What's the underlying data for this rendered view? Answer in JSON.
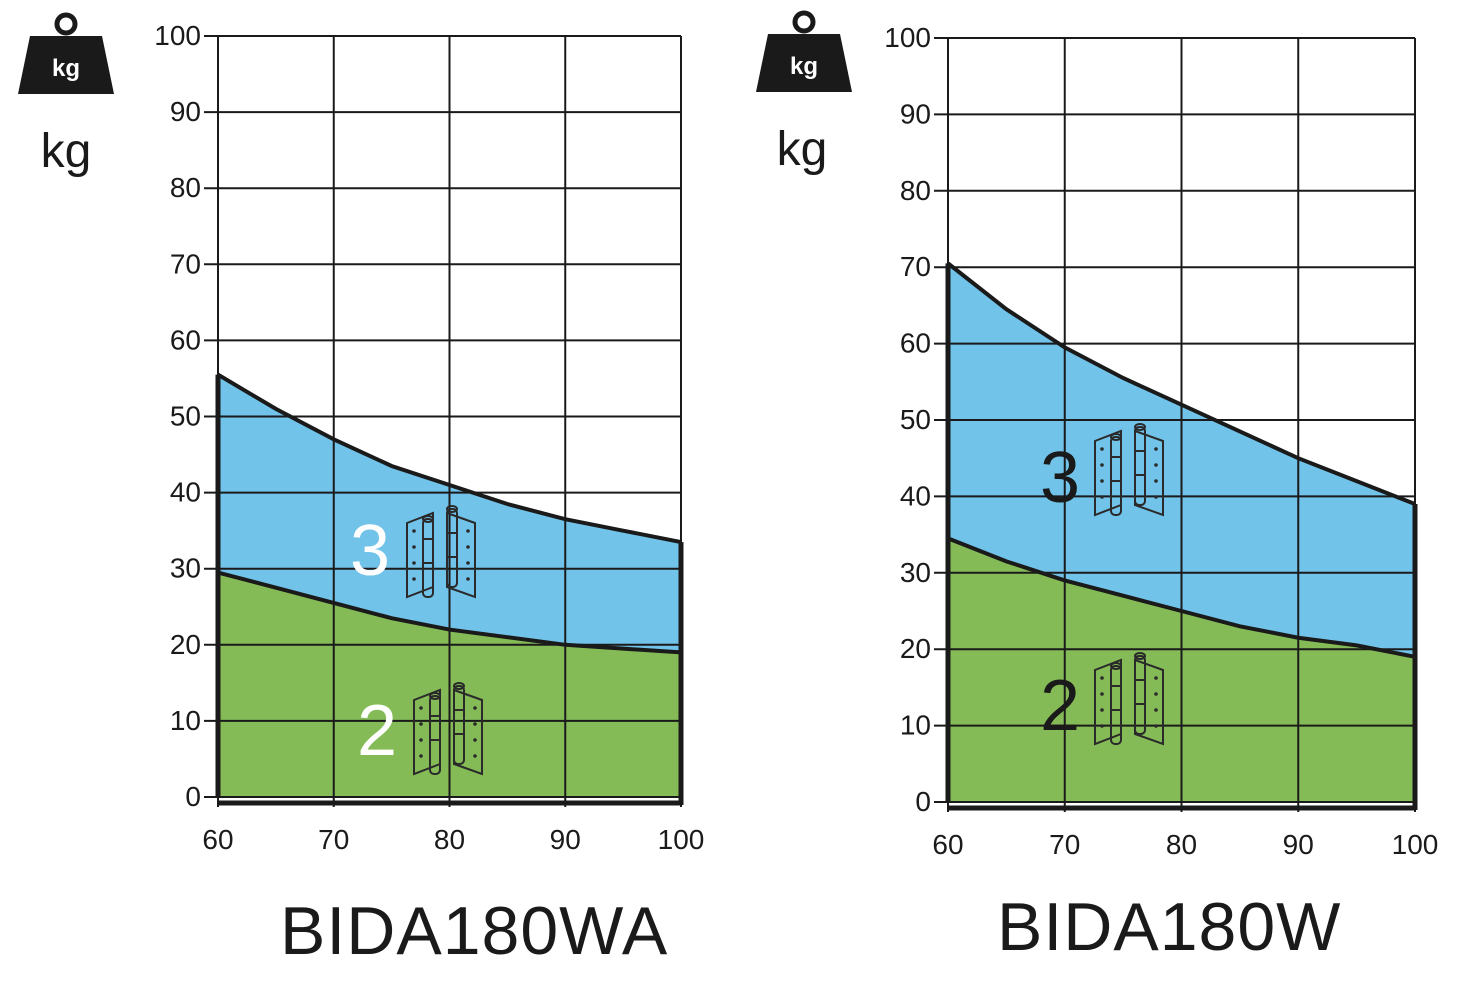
{
  "chart_data": [
    {
      "type": "area",
      "title": "BIDA180WA",
      "unit_label": "kg",
      "weight_icon_label": "kg",
      "xlim": [
        60,
        100
      ],
      "ylim": [
        0,
        100
      ],
      "x_ticks": [
        60,
        70,
        80,
        90,
        100
      ],
      "y_ticks": [
        0,
        10,
        20,
        30,
        40,
        50,
        60,
        70,
        80,
        90,
        100
      ],
      "grid": true,
      "series": [
        {
          "name": "3",
          "color": "#72c3ea",
          "x": [
            60,
            65,
            70,
            75,
            80,
            85,
            90,
            95,
            100
          ],
          "values": [
            55.5,
            51,
            47,
            43.5,
            41,
            38.5,
            36.5,
            35,
            33.5
          ]
        },
        {
          "name": "2",
          "color": "#85bb57",
          "x": [
            60,
            65,
            70,
            75,
            80,
            85,
            90,
            95,
            100
          ],
          "values": [
            29.5,
            27.5,
            25.5,
            23.5,
            22,
            21,
            20,
            19.5,
            19
          ]
        }
      ],
      "region_label_color": "#ffffff"
    },
    {
      "type": "area",
      "title": "BIDA180W",
      "unit_label": "kg",
      "weight_icon_label": "kg",
      "xlim": [
        60,
        100
      ],
      "ylim": [
        0,
        100
      ],
      "x_ticks": [
        60,
        70,
        80,
        90,
        100
      ],
      "y_ticks": [
        0,
        10,
        20,
        30,
        40,
        50,
        60,
        70,
        80,
        90,
        100
      ],
      "grid": true,
      "series": [
        {
          "name": "3",
          "color": "#72c3ea",
          "x": [
            60,
            65,
            70,
            75,
            80,
            85,
            90,
            95,
            100
          ],
          "values": [
            70.5,
            64.5,
            59.5,
            55.5,
            52,
            48.5,
            45,
            42,
            39
          ]
        },
        {
          "name": "2",
          "color": "#85bb57",
          "x": [
            60,
            65,
            70,
            75,
            80,
            85,
            90,
            95,
            100
          ],
          "values": [
            34.5,
            31.5,
            29,
            27,
            25,
            23,
            21.5,
            20.5,
            19
          ]
        }
      ],
      "region_label_color": "#1a1a1a"
    }
  ],
  "icons": {
    "weight": "weight-kg-icon",
    "hinge": "double-action-hinge-icon"
  }
}
